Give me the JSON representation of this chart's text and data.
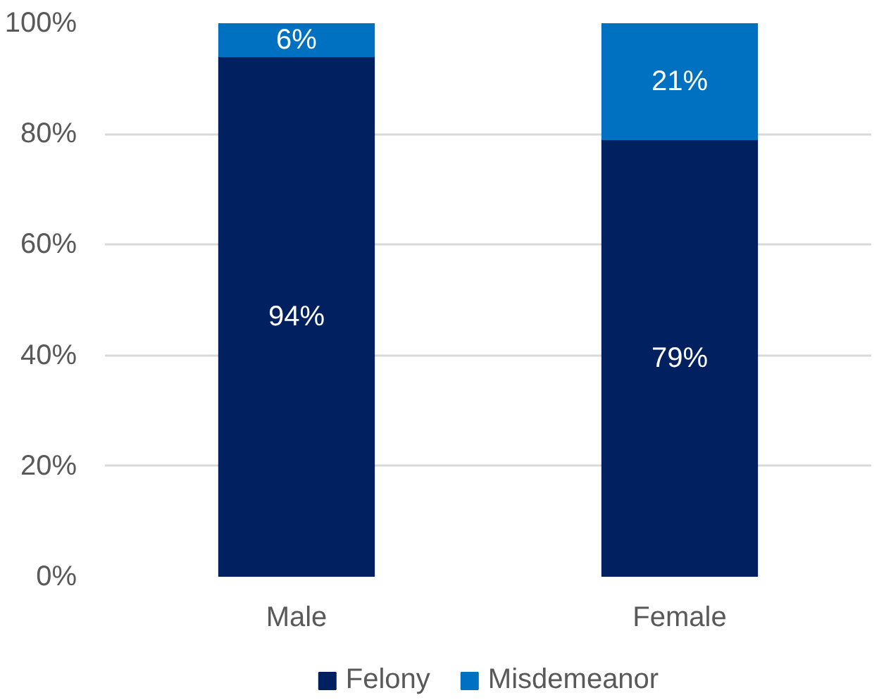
{
  "chart_data": {
    "type": "bar",
    "stacked": true,
    "categories": [
      "Male",
      "Female"
    ],
    "series": [
      {
        "name": "Felony",
        "color": "#002060",
        "values": [
          94,
          79
        ],
        "value_labels": [
          "94%",
          "79%"
        ]
      },
      {
        "name": "Misdemeanor",
        "color": "#0070c0",
        "values": [
          6,
          21
        ],
        "value_labels": [
          "6%",
          "21%"
        ]
      }
    ],
    "ylim": [
      0,
      100
    ],
    "yticks": [
      {
        "value": 0,
        "label": "0%"
      },
      {
        "value": 20,
        "label": "20%"
      },
      {
        "value": 40,
        "label": "40%"
      },
      {
        "value": 60,
        "label": "60%"
      },
      {
        "value": 80,
        "label": "80%"
      },
      {
        "value": 100,
        "label": "100%"
      }
    ],
    "grid": "y",
    "legend": "bottom"
  }
}
